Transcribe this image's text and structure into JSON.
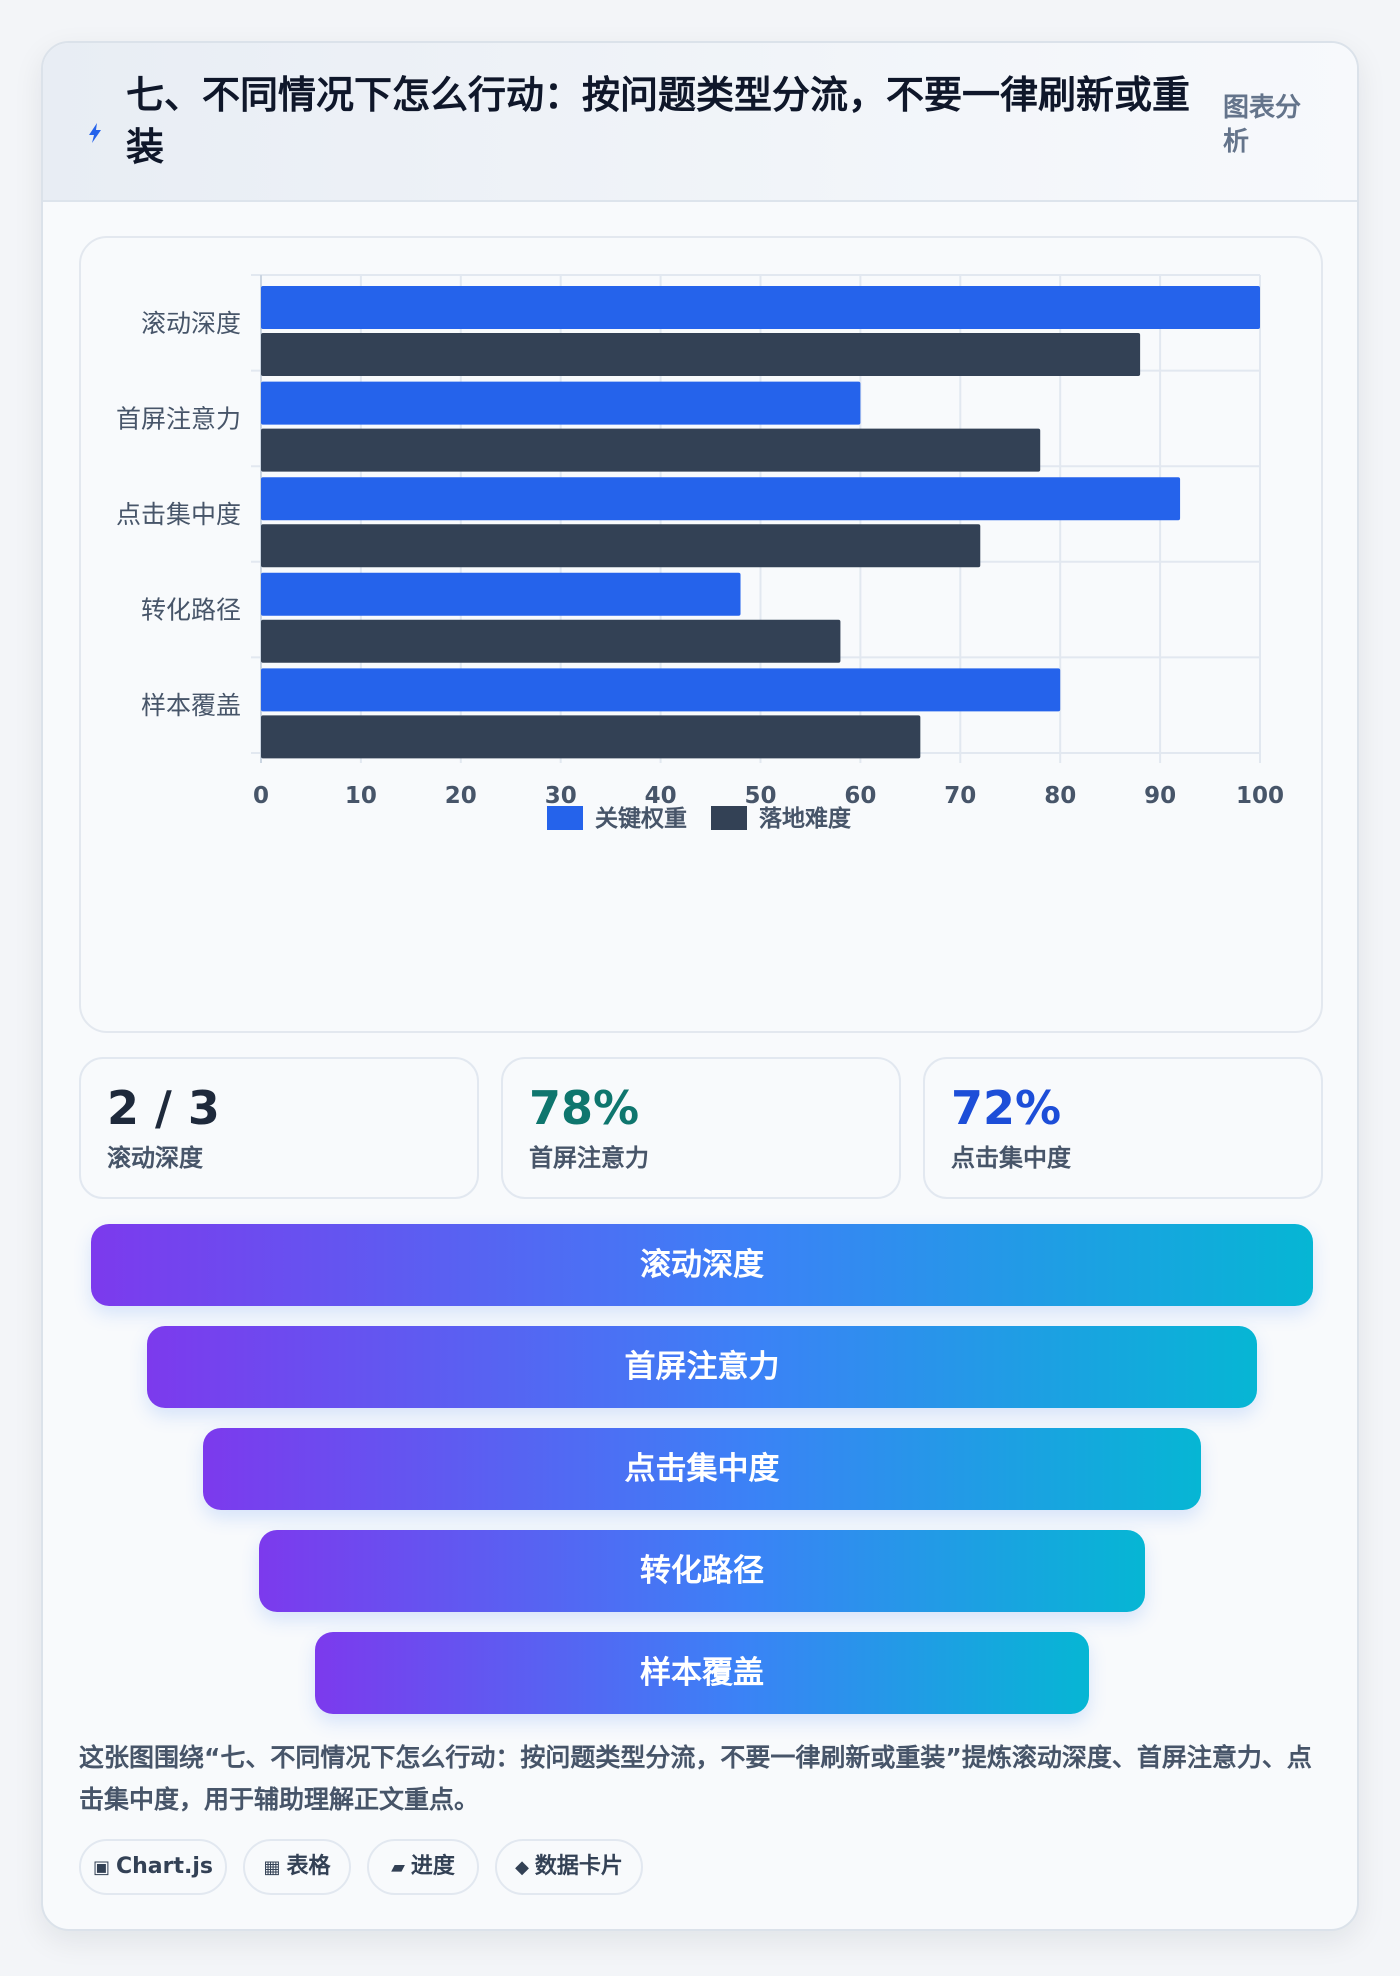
{
  "header": {
    "title": "七、不同情况下怎么行动：按问题类型分流，不要一律刷新或重装",
    "tag": "图表分析",
    "icon": "lightning-icon"
  },
  "chart_data": {
    "type": "bar",
    "orientation": "horizontal",
    "categories": [
      "滚动深度",
      "首屏注意力",
      "点击集中度",
      "转化路径",
      "样本覆盖"
    ],
    "series": [
      {
        "name": "关键权重",
        "values": [
          100,
          60,
          92,
          48,
          80
        ],
        "color": "#2563eb"
      },
      {
        "name": "落地难度",
        "values": [
          88,
          78,
          72,
          58,
          66
        ],
        "color": "#334155"
      }
    ],
    "xlim": [
      0,
      100
    ],
    "xticks": [
      0,
      10,
      20,
      30,
      40,
      50,
      60,
      70,
      80,
      90,
      100
    ],
    "grid": true,
    "legend": "bottom"
  },
  "kpis": [
    {
      "value": "2 / 3",
      "label": "滚动深度",
      "color": "#1e293b"
    },
    {
      "value": "78%",
      "label": "首屏注意力",
      "color": "#0f766e"
    },
    {
      "value": "72%",
      "label": "点击集中度",
      "color": "#1d4ed8"
    }
  ],
  "funnel": [
    "滚动深度",
    "首屏注意力",
    "点击集中度",
    "转化路径",
    "样本覆盖"
  ],
  "description": "这张图围绕“七、不同情况下怎么行动：按问题类型分流，不要一律刷新或重装”提炼滚动深度、首屏注意力、点击集中度，用于辅助理解正文重点。",
  "chips": [
    {
      "icon": "▣",
      "icon_name": "chart-icon",
      "label": "Chart.js"
    },
    {
      "icon": "▦",
      "icon_name": "table-icon",
      "label": "表格"
    },
    {
      "icon": "▰",
      "icon_name": "progress-icon",
      "label": "进度"
    },
    {
      "icon": "◆",
      "icon_name": "data-card-icon",
      "label": "数据卡片"
    }
  ]
}
